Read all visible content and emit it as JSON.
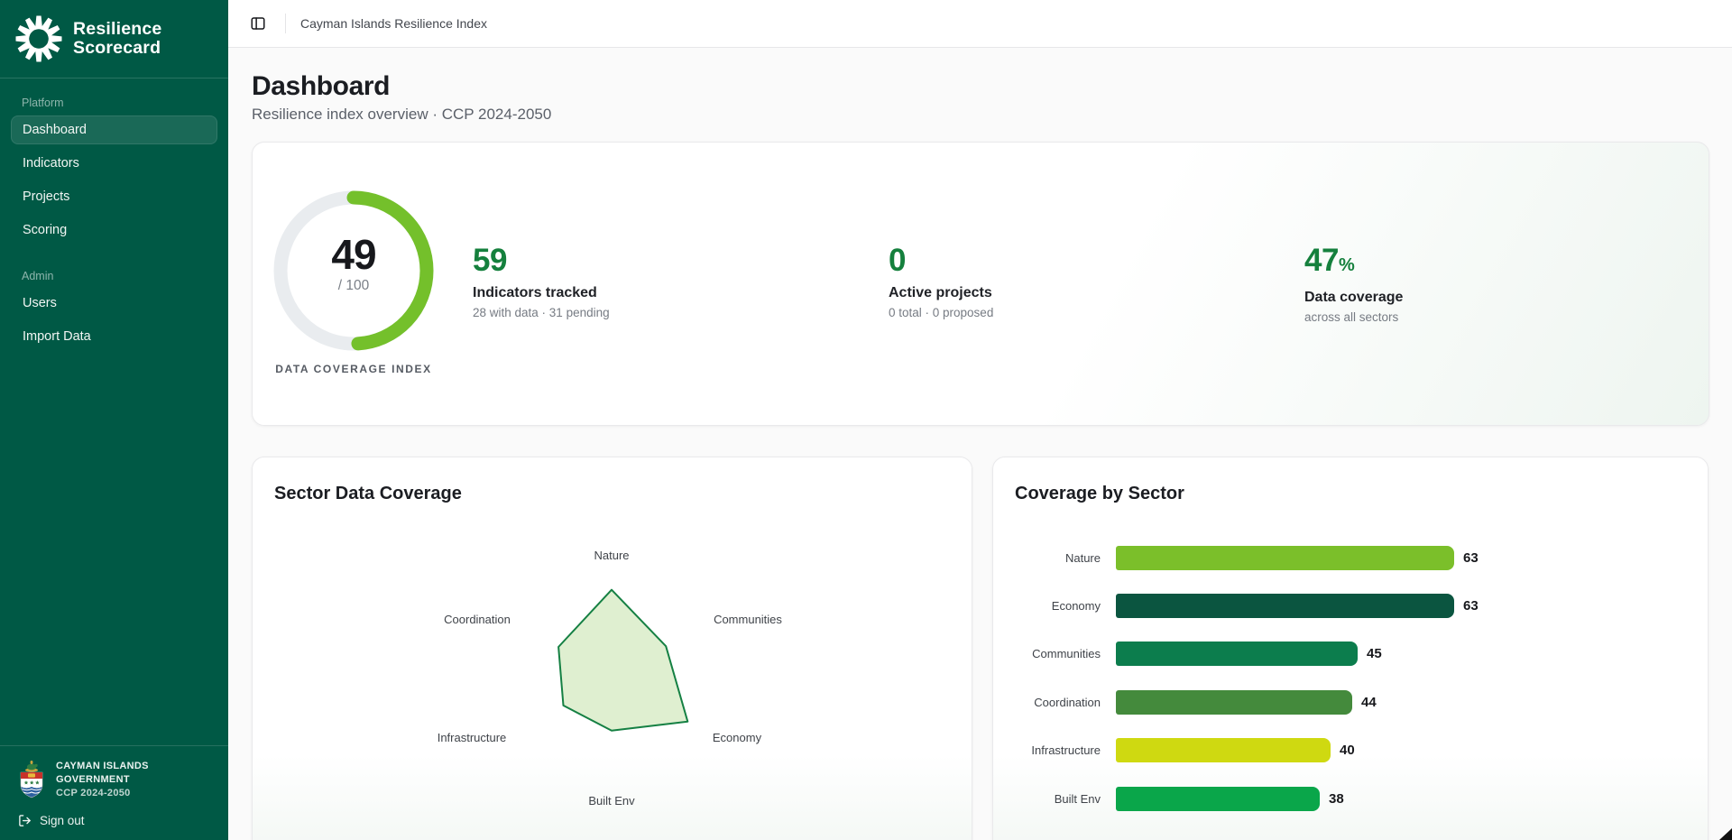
{
  "app": {
    "name_line1": "Resilience",
    "name_line2": "Scorecard"
  },
  "topbar": {
    "title": "Cayman Islands Resilience Index"
  },
  "sidebar": {
    "sections": [
      {
        "label": "Platform",
        "items": [
          {
            "label": "Dashboard",
            "active": true
          },
          {
            "label": "Indicators",
            "active": false
          },
          {
            "label": "Projects",
            "active": false
          },
          {
            "label": "Scoring",
            "active": false
          }
        ]
      },
      {
        "label": "Admin",
        "items": [
          {
            "label": "Users",
            "active": false
          },
          {
            "label": "Import Data",
            "active": false
          }
        ]
      }
    ],
    "footer": {
      "org": "Cayman Islands Government",
      "plan": "CCP 2024-2050",
      "signout": "Sign out"
    }
  },
  "header": {
    "title": "Dashboard",
    "subtitle": "Resilience index overview · CCP 2024-2050"
  },
  "stats": {
    "gauge": {
      "value": 49,
      "max": 100,
      "denominator_label": "/ 100",
      "caption": "DATA COVERAGE INDEX",
      "arc_color": "#74c02b",
      "track_color": "#e9ecef"
    },
    "accent_color": "#15803d",
    "items": [
      {
        "value": "59",
        "suffix": "",
        "label": "Indicators tracked",
        "sub": "28 with data · 31 pending"
      },
      {
        "value": "0",
        "suffix": "",
        "label": "Active projects",
        "sub": "0 total · 0 proposed"
      },
      {
        "value": "47",
        "suffix": "%",
        "label": "Data coverage",
        "sub": "across all sectors"
      }
    ]
  },
  "chart_data": [
    {
      "type": "radar",
      "title": "Sector Data Coverage",
      "categories": [
        "Nature",
        "Communities",
        "Economy",
        "Built Env",
        "Infrastructure",
        "Coordination"
      ],
      "values": [
        63,
        45,
        63,
        38,
        40,
        44
      ],
      "rmax": 100,
      "fill_color": "#dcedcb",
      "stroke_color": "#158043",
      "grid": false,
      "legend": "none"
    },
    {
      "type": "bar",
      "title": "Coverage by Sector",
      "orientation": "horizontal",
      "categories": [
        "Nature",
        "Economy",
        "Communities",
        "Coordination",
        "Infrastructure",
        "Built Env"
      ],
      "values": [
        63,
        63,
        45,
        44,
        40,
        38
      ],
      "colors": [
        "#7bbf2a",
        "#0b5540",
        "#0c7d4d",
        "#448a3c",
        "#cfd911",
        "#0aa64a"
      ],
      "xlim": [
        0,
        63
      ],
      "value_labels": true,
      "grid": false
    }
  ]
}
